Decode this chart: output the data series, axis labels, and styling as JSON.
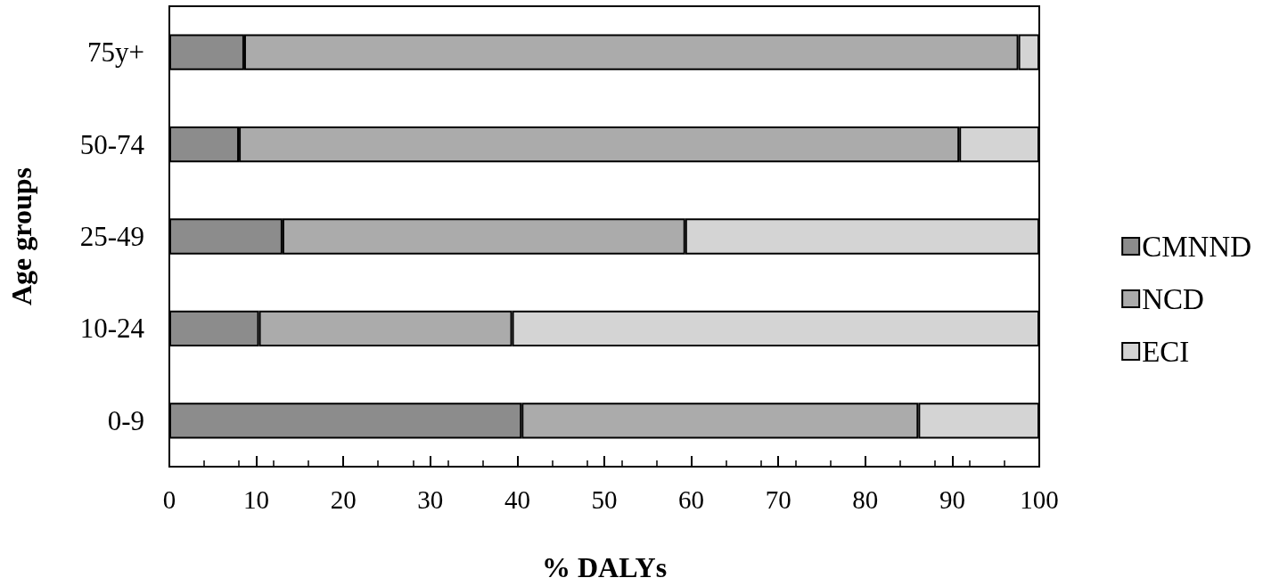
{
  "chart_data": {
    "type": "bar",
    "orientation": "horizontal",
    "stacked": true,
    "xlabel": "% DALYs",
    "ylabel": "Age groups",
    "categories": [
      "75y+",
      "50-74",
      "25-49",
      "10-24",
      "0-9"
    ],
    "series": [
      {
        "name": "CMNND",
        "color": "#8c8c8c",
        "values": [
          8.6,
          8.0,
          13.0,
          10.3,
          40.5
        ]
      },
      {
        "name": "NCD",
        "color": "#ababab",
        "values": [
          89.0,
          82.8,
          46.3,
          29.1,
          45.6
        ]
      },
      {
        "name": "ECI",
        "color": "#d4d4d4",
        "values": [
          2.4,
          9.2,
          40.7,
          60.6,
          13.9
        ]
      }
    ],
    "xlim": [
      0,
      100
    ],
    "xticks": [
      0,
      10,
      20,
      30,
      40,
      50,
      60,
      70,
      80,
      90,
      100
    ],
    "legend": "right",
    "grid": false
  }
}
